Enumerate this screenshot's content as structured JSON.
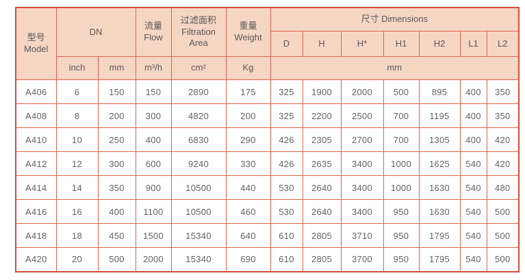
{
  "colors": {
    "header_bg": "#f5d6c3",
    "grid_border": "#e0604a",
    "outer_border": "#d94a38",
    "header_text": "#595757",
    "data_text": "#616161",
    "page_bg": "#ffffff"
  },
  "table": {
    "header": {
      "model": "型号\nModel",
      "dn": "DN",
      "flow": "流量\nFlow",
      "filtration_area": "过滤面积\nFiltration\nArea",
      "weight": "重量\nWeight",
      "dimensions": "尺寸 Dimensions",
      "dim_labels": [
        "D",
        "H",
        "H*",
        "H1",
        "H2",
        "L1",
        "L2"
      ],
      "unit_inch": "inch",
      "unit_mm": "mm",
      "unit_flow": "m³/h",
      "unit_area": "cm²",
      "unit_weight": "Kg",
      "unit_dims": "mm"
    },
    "row_keys": [
      "model",
      "inch",
      "mm",
      "flow",
      "area",
      "weight",
      "d",
      "h",
      "h_star",
      "h1",
      "h2",
      "l1",
      "l2"
    ],
    "rows": [
      {
        "model": "A406",
        "inch": "6",
        "mm": "150",
        "flow": "150",
        "area": "2890",
        "weight": "175",
        "d": "325",
        "h": "1900",
        "h_star": "2000",
        "h1": "500",
        "h2": "895",
        "l1": "400",
        "l2": "350"
      },
      {
        "model": "A408",
        "inch": "8",
        "mm": "200",
        "flow": "300",
        "area": "4820",
        "weight": "200",
        "d": "325",
        "h": "2200",
        "h_star": "2500",
        "h1": "700",
        "h2": "1195",
        "l1": "400",
        "l2": "350"
      },
      {
        "model": "A410",
        "inch": "10",
        "mm": "250",
        "flow": "400",
        "area": "6830",
        "weight": "290",
        "d": "426",
        "h": "2305",
        "h_star": "2700",
        "h1": "700",
        "h2": "1305",
        "l1": "400",
        "l2": "420"
      },
      {
        "model": "A412",
        "inch": "12",
        "mm": "300",
        "flow": "600",
        "area": "9240",
        "weight": "330",
        "d": "426",
        "h": "2635",
        "h_star": "3400",
        "h1": "1000",
        "h2": "1625",
        "l1": "540",
        "l2": "420"
      },
      {
        "model": "A414",
        "inch": "14",
        "mm": "350",
        "flow": "900",
        "area": "10500",
        "weight": "440",
        "d": "530",
        "h": "2640",
        "h_star": "3400",
        "h1": "1000",
        "h2": "1630",
        "l1": "540",
        "l2": "480"
      },
      {
        "model": "A416",
        "inch": "16",
        "mm": "400",
        "flow": "1100",
        "area": "10500",
        "weight": "460",
        "d": "530",
        "h": "2640",
        "h_star": "3400",
        "h1": "950",
        "h2": "1630",
        "l1": "540",
        "l2": "500"
      },
      {
        "model": "A418",
        "inch": "18",
        "mm": "450",
        "flow": "1500",
        "area": "15340",
        "weight": "640",
        "d": "610",
        "h": "2805",
        "h_star": "3710",
        "h1": "950",
        "h2": "1795",
        "l1": "540",
        "l2": "500"
      },
      {
        "model": "A420",
        "inch": "20",
        "mm": "500",
        "flow": "2000",
        "area": "15340",
        "weight": "690",
        "d": "610",
        "h": "2805",
        "h_star": "3700",
        "h1": "950",
        "h2": "1795",
        "l1": "540",
        "l2": "500"
      }
    ]
  }
}
